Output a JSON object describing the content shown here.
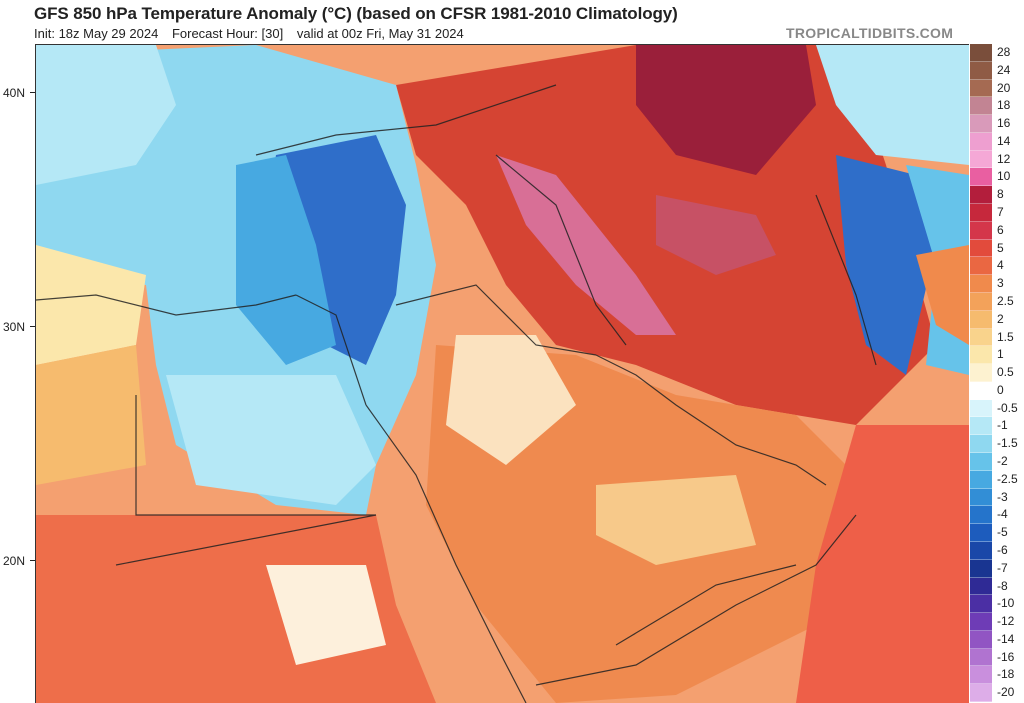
{
  "header": {
    "title": "GFS 850 hPa Temperature Anomaly (°C) (based on CFSR 1981-2010 Climatology)",
    "init": "Init: 18z May 29 2024",
    "forecast_hour": "Forecast Hour: [30]",
    "valid": "valid at 00z Fri, May 31 2024",
    "watermark": "TROPICALTIDBITS.COM"
  },
  "map": {
    "lat_labels": [
      "40N",
      "30N",
      "20N"
    ],
    "colors": {
      "ocean_cold": "#bfe9f5",
      "land_warm": "#f4a070",
      "anomaly_strong": "#d23a2c",
      "anomaly_extreme": "#9a1f3a",
      "anomaly_peak": "#d86f96",
      "cold_core": "#2f6ec9",
      "neutral": "#fdf3e0",
      "borders": "#222222"
    }
  },
  "colorbar": {
    "labels": [
      "28",
      "24",
      "20",
      "18",
      "16",
      "14",
      "12",
      "10",
      "8",
      "7",
      "6",
      "5",
      "4",
      "3",
      "2.5",
      "2",
      "1.5",
      "1",
      "0.5",
      "0",
      "-0.5",
      "-1",
      "-1.5",
      "-2",
      "-2.5",
      "-3",
      "-4",
      "-5",
      "-6",
      "-7",
      "-8",
      "-10",
      "-12",
      "-14",
      "-16",
      "-18",
      "-20"
    ],
    "colors": [
      "#7a4e3b",
      "#8f5b45",
      "#a56a52",
      "#c28493",
      "#d99aba",
      "#ee9fd0",
      "#f5a8d6",
      "#e95fa1",
      "#b31e3c",
      "#c6283c",
      "#d4364a",
      "#e24b3c",
      "#ea6742",
      "#f08a4c",
      "#f3a25a",
      "#f6bb6e",
      "#f9d38c",
      "#fbe7ab",
      "#fdf2d0",
      "#ffffff",
      "#d8f4fb",
      "#b5e8f6",
      "#8fd8f0",
      "#66c3ea",
      "#47a9e1",
      "#328ed6",
      "#2574cb",
      "#1d5cbd",
      "#1a47a8",
      "#193591",
      "#2f2a95",
      "#4b2fa4",
      "#6e3cb6",
      "#9155c3",
      "#b073d0",
      "#c98fdd",
      "#ddade8"
    ]
  }
}
